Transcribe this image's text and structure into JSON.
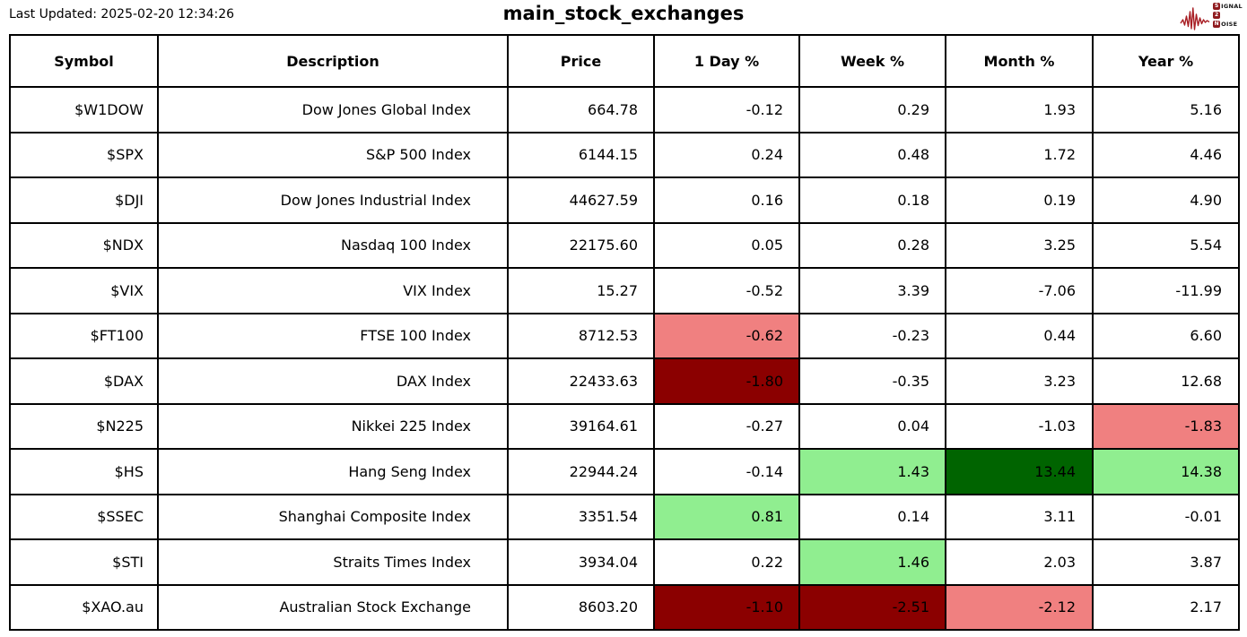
{
  "header": {
    "last_updated": "Last Updated: 2025-02-20 12:34:26"
  },
  "logo": {
    "name": "signal-2-noise",
    "color": "#A81E24",
    "badge_color": "#8F1A1E",
    "lines": [
      {
        "badge": "S",
        "rest": "IGNAL"
      },
      {
        "badge": "2",
        "rest": ""
      },
      {
        "badge": "N",
        "rest": "OISE"
      }
    ]
  },
  "palette": {
    "neg": "#F08080",
    "neg_strong": "#8B0000",
    "pos": "#90EE90",
    "pos_strong": "#006400"
  },
  "chart_data": {
    "type": "table",
    "title": "main_stock_exchanges",
    "columns": [
      "Symbol",
      "Description",
      "Price",
      "1 Day %",
      "Week %",
      "Month %",
      "Year %"
    ],
    "value_columns": [
      "Price",
      "1 Day %",
      "Week %",
      "Month %",
      "Year %"
    ],
    "rows": [
      {
        "symbol": "$W1DOW",
        "description": "Dow Jones Global Index",
        "values": [
          664.78,
          -0.12,
          0.29,
          1.93,
          5.16
        ],
        "highlight": [
          null,
          null,
          null,
          null,
          null
        ]
      },
      {
        "symbol": "$SPX",
        "description": "S&P 500 Index",
        "values": [
          6144.15,
          0.24,
          0.48,
          1.72,
          4.46
        ],
        "highlight": [
          null,
          null,
          null,
          null,
          null
        ]
      },
      {
        "symbol": "$DJI",
        "description": "Dow Jones Industrial Index",
        "values": [
          44627.59,
          0.16,
          0.18,
          0.19,
          4.9
        ],
        "highlight": [
          null,
          null,
          null,
          null,
          null
        ]
      },
      {
        "symbol": "$NDX",
        "description": "Nasdaq 100 Index",
        "values": [
          22175.6,
          0.05,
          0.28,
          3.25,
          5.54
        ],
        "highlight": [
          null,
          null,
          null,
          null,
          null
        ]
      },
      {
        "symbol": "$VIX",
        "description": "VIX Index",
        "values": [
          15.27,
          -0.52,
          3.39,
          -7.06,
          -11.99
        ],
        "highlight": [
          null,
          null,
          null,
          null,
          null
        ]
      },
      {
        "symbol": "$FT100",
        "description": "FTSE 100 Index",
        "values": [
          8712.53,
          -0.62,
          -0.23,
          0.44,
          6.6
        ],
        "highlight": [
          null,
          "neg",
          null,
          null,
          null
        ]
      },
      {
        "symbol": "$DAX",
        "description": "DAX Index",
        "values": [
          22433.63,
          -1.8,
          -0.35,
          3.23,
          12.68
        ],
        "highlight": [
          null,
          "neg_strong",
          null,
          null,
          null
        ]
      },
      {
        "symbol": "$N225",
        "description": "Nikkei 225 Index",
        "values": [
          39164.61,
          -0.27,
          0.04,
          -1.03,
          -1.83
        ],
        "highlight": [
          null,
          null,
          null,
          null,
          "neg"
        ]
      },
      {
        "symbol": "$HS",
        "description": "Hang Seng Index",
        "values": [
          22944.24,
          -0.14,
          1.43,
          13.44,
          14.38
        ],
        "highlight": [
          null,
          null,
          "pos",
          "pos_strong",
          "pos"
        ]
      },
      {
        "symbol": "$SSEC",
        "description": "Shanghai Composite Index",
        "values": [
          3351.54,
          0.81,
          0.14,
          3.11,
          -0.01
        ],
        "highlight": [
          null,
          "pos",
          null,
          null,
          null
        ]
      },
      {
        "symbol": "$STI",
        "description": "Straits Times Index",
        "values": [
          3934.04,
          0.22,
          1.46,
          2.03,
          3.87
        ],
        "highlight": [
          null,
          null,
          "pos",
          null,
          null
        ]
      },
      {
        "symbol": "$XAO.au",
        "description": "Australian Stock Exchange",
        "values": [
          8603.2,
          -1.1,
          -2.51,
          -2.12,
          2.17
        ],
        "highlight": [
          null,
          "neg_strong",
          "neg_strong",
          "neg",
          null
        ]
      }
    ]
  }
}
